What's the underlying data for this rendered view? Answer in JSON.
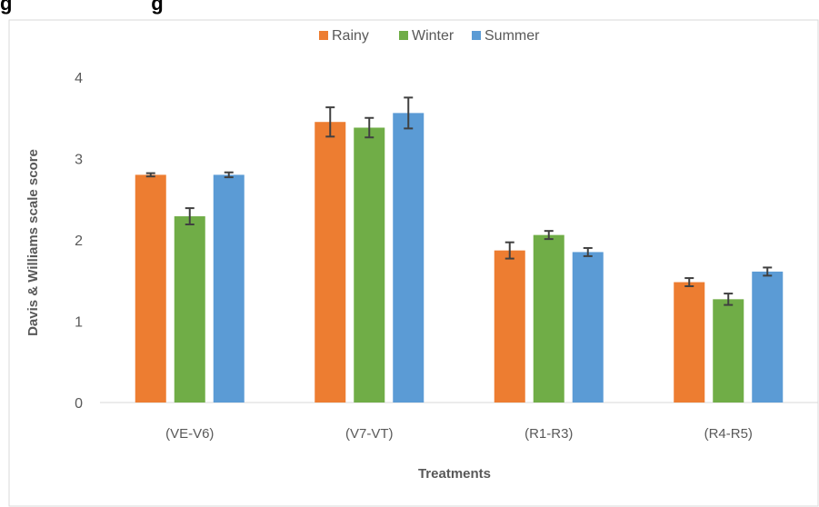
{
  "header_fragment": "g                         g",
  "chart_data": {
    "type": "bar",
    "title": "",
    "categories": [
      "(VE-V6)",
      "(V7-VT)",
      "(R1-R3)",
      "(R4-R5)"
    ],
    "series": [
      {
        "name": "Rainy",
        "color": "#ED7D31",
        "values": [
          2.8,
          3.45,
          1.87,
          1.48
        ],
        "errors": [
          0.02,
          0.18,
          0.1,
          0.05
        ]
      },
      {
        "name": "Winter",
        "color": "#70AD47",
        "values": [
          2.29,
          3.38,
          2.06,
          1.27
        ],
        "errors": [
          0.1,
          0.12,
          0.05,
          0.07
        ]
      },
      {
        "name": "Summer",
        "color": "#5B9BD5",
        "values": [
          2.8,
          3.56,
          1.85,
          1.61
        ],
        "errors": [
          0.03,
          0.19,
          0.05,
          0.05
        ]
      }
    ],
    "xlabel": "Treatments",
    "ylabel": "Davis & Williams scale score",
    "ylim": [
      0,
      4
    ],
    "yticks": [
      "0",
      "1",
      "2",
      "3",
      "4"
    ],
    "grid": false,
    "legend_position": "top-center"
  }
}
